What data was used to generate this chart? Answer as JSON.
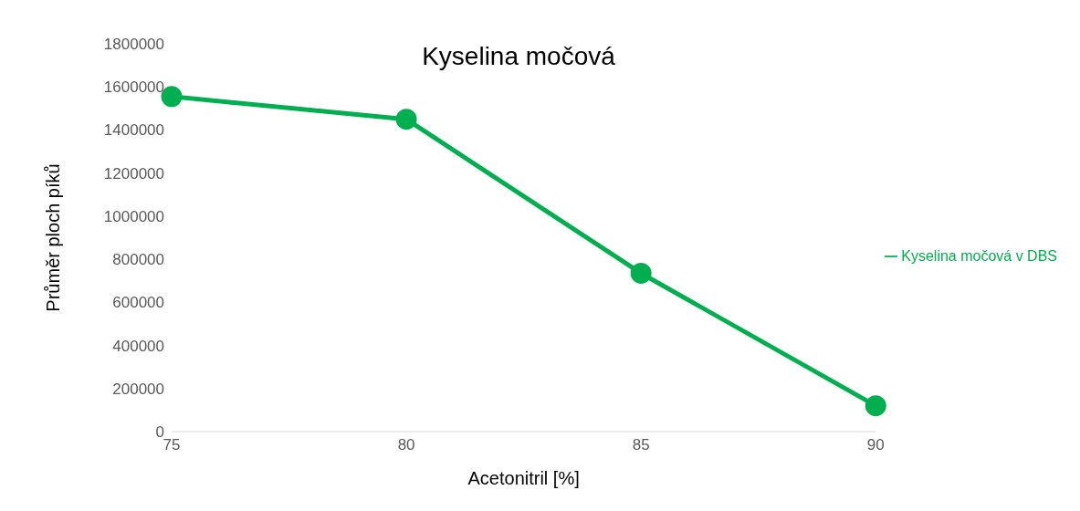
{
  "chart_data": {
    "type": "line",
    "title": "Kyselina močová",
    "xlabel": "Acetonitril [%]",
    "ylabel": "Průměr ploch píků",
    "categories": [
      "75",
      "80",
      "85",
      "90"
    ],
    "series": [
      {
        "name": "Kyselina močová v DBS",
        "color": "#00b050",
        "values": [
          1555000,
          1450000,
          735000,
          120000
        ]
      }
    ],
    "ylim": [
      0,
      1800000
    ],
    "yticks": [
      0,
      200000,
      400000,
      600000,
      800000,
      1000000,
      1200000,
      1400000,
      1600000,
      1800000
    ],
    "grid": false,
    "legend": "right",
    "marker": "circle",
    "line_style": "solid"
  }
}
